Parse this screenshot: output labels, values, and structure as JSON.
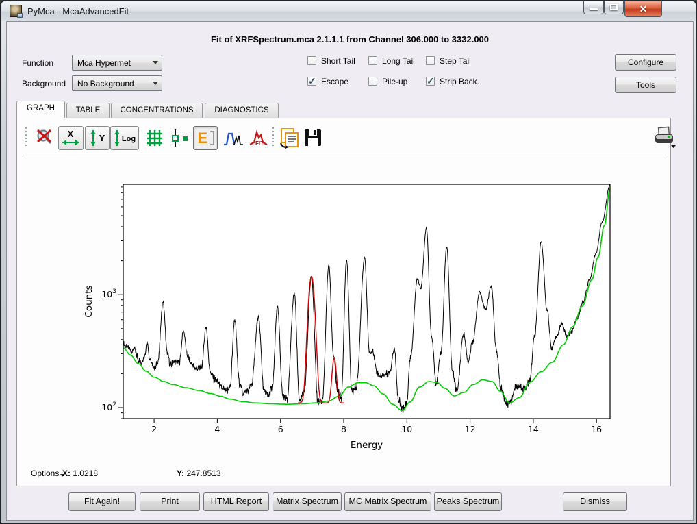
{
  "window": {
    "title": "PyMca - McaAdvancedFit"
  },
  "header": {
    "title": "Fit of XRFSpectrum.mca 2.1.1.1 from Channel 306.000 to 3332.000"
  },
  "controls": {
    "function_label": "Function",
    "function_value": "Mca Hypermet",
    "background_label": "Background",
    "background_value": "No Background",
    "checkboxes": [
      {
        "label": "Short Tail",
        "checked": false
      },
      {
        "label": "Long Tail",
        "checked": false
      },
      {
        "label": "Step Tail",
        "checked": false
      },
      {
        "label": "Escape",
        "checked": true
      },
      {
        "label": "Pile-up",
        "checked": false
      },
      {
        "label": "Strip Back.",
        "checked": true
      }
    ],
    "configure_label": "Configure",
    "tools_label": "Tools"
  },
  "tabs": [
    {
      "label": "GRAPH",
      "active": true
    },
    {
      "label": "TABLE",
      "active": false
    },
    {
      "label": "CONCENTRATIONS",
      "active": false
    },
    {
      "label": "DIAGNOSTICS",
      "active": false
    }
  ],
  "toolbar": {
    "x_label": "X",
    "y_label": "Y",
    "log_label": "Log",
    "e_label": "E",
    "fit_label": "FIT",
    "icons": [
      "zoom-reset",
      "x-autoscale",
      "y-autoscale",
      "log-scale",
      "grid",
      "marker-mode",
      "energy-axis",
      "peaks",
      "fit",
      "copy",
      "save",
      "print"
    ]
  },
  "status": {
    "options_label": "Options",
    "x_label": "X:",
    "x_value": "1.0218",
    "y_label": "Y:",
    "y_value": "247.8513"
  },
  "footer_buttons": [
    "Fit Again!",
    "Print",
    "HTML Report",
    "Matrix Spectrum",
    "MC Matrix Spectrum",
    "Peaks Spectrum",
    "Dismiss"
  ],
  "colors": {
    "data": "#000000",
    "background_fit": "#00cc00",
    "peak_fit": "#cc0000",
    "close_button": "#c33b20",
    "icon_green": "#00a040",
    "icon_orange": "#e8920e"
  },
  "chart_data": {
    "type": "line",
    "xlabel": "Energy",
    "ylabel": "Counts",
    "xlim": [
      1.0218,
      16.43
    ],
    "ylim": [
      80,
      9500
    ],
    "yscale": "log",
    "x_ticks": [
      2,
      4,
      6,
      8,
      10,
      12,
      14,
      16
    ],
    "y_ticks": [
      {
        "value": 100,
        "base": "10",
        "exp": "2"
      },
      {
        "value": 1000,
        "base": "10",
        "exp": "3"
      }
    ],
    "grid": false,
    "legend": "none",
    "series": [
      {
        "name": "measured-spectrum",
        "color": "#000000",
        "noisy": true,
        "points": [
          [
            1.03,
            380
          ],
          [
            1.08,
            355
          ],
          [
            1.15,
            345
          ],
          [
            1.22,
            330
          ],
          [
            1.3,
            318
          ],
          [
            1.38,
            332
          ],
          [
            1.45,
            290
          ],
          [
            1.52,
            262
          ],
          [
            1.6,
            255
          ],
          [
            1.7,
            290
          ],
          [
            1.78,
            385
          ],
          [
            1.86,
            270
          ],
          [
            1.95,
            235
          ],
          [
            2.03,
            228
          ],
          [
            2.12,
            255
          ],
          [
            2.28,
            860
          ],
          [
            2.42,
            300
          ],
          [
            2.52,
            238
          ],
          [
            2.62,
            258
          ],
          [
            2.72,
            248
          ],
          [
            2.8,
            255
          ],
          [
            2.93,
            480
          ],
          [
            3.05,
            290
          ],
          [
            3.15,
            252
          ],
          [
            3.25,
            232
          ],
          [
            3.38,
            222
          ],
          [
            3.5,
            228
          ],
          [
            3.64,
            520
          ],
          [
            3.78,
            205
          ],
          [
            3.9,
            180
          ],
          [
            4.02,
            168
          ],
          [
            4.15,
            148
          ],
          [
            4.28,
            138
          ],
          [
            4.4,
            152
          ],
          [
            4.55,
            600
          ],
          [
            4.7,
            165
          ],
          [
            4.82,
            136
          ],
          [
            4.95,
            140
          ],
          [
            5.08,
            158
          ],
          [
            5.3,
            630
          ],
          [
            5.48,
            140
          ],
          [
            5.6,
            126
          ],
          [
            5.74,
            150
          ],
          [
            5.9,
            780
          ],
          [
            6.08,
            124
          ],
          [
            6.2,
            118
          ],
          [
            6.44,
            1030
          ],
          [
            6.6,
            118
          ],
          [
            6.74,
            132
          ],
          [
            6.98,
            1450
          ],
          [
            7.18,
            116
          ],
          [
            7.32,
            112
          ],
          [
            7.53,
            1820
          ],
          [
            7.68,
            290
          ],
          [
            7.8,
            140
          ],
          [
            7.92,
            120
          ],
          [
            8.09,
            2030
          ],
          [
            8.26,
            140
          ],
          [
            8.4,
            155
          ],
          [
            8.66,
            2110
          ],
          [
            8.82,
            300
          ],
          [
            8.93,
            315
          ],
          [
            9.05,
            205
          ],
          [
            9.18,
            188
          ],
          [
            9.3,
            195
          ],
          [
            9.45,
            205
          ],
          [
            9.6,
            335
          ],
          [
            9.74,
            115
          ],
          [
            9.86,
            94
          ],
          [
            9.98,
            104
          ],
          [
            10.12,
            280
          ],
          [
            10.33,
            1380
          ],
          [
            10.44,
            1150
          ],
          [
            10.62,
            3900
          ],
          [
            10.78,
            430
          ],
          [
            10.93,
            162
          ],
          [
            11.08,
            310
          ],
          [
            11.26,
            2700
          ],
          [
            11.44,
            210
          ],
          [
            11.58,
            140
          ],
          [
            11.8,
            450
          ],
          [
            11.94,
            252
          ],
          [
            12.08,
            380
          ],
          [
            12.3,
            1040
          ],
          [
            12.49,
            735
          ],
          [
            12.67,
            1190
          ],
          [
            12.84,
            310
          ],
          [
            12.98,
            148
          ],
          [
            13.12,
            113
          ],
          [
            13.28,
            110
          ],
          [
            13.42,
            150
          ],
          [
            13.56,
            156
          ],
          [
            13.72,
            150
          ],
          [
            13.88,
            168
          ],
          [
            14.04,
            420
          ],
          [
            14.25,
            2950
          ],
          [
            14.44,
            720
          ],
          [
            14.58,
            330
          ],
          [
            14.74,
            430
          ],
          [
            14.9,
            560
          ],
          [
            15.05,
            430
          ],
          [
            15.2,
            460
          ],
          [
            15.38,
            610
          ],
          [
            15.58,
            870
          ],
          [
            15.78,
            1350
          ],
          [
            15.98,
            2300
          ],
          [
            16.18,
            4400
          ],
          [
            16.43,
            9400
          ]
        ]
      },
      {
        "name": "strip-background",
        "color": "#00cc00",
        "noisy": false,
        "points": [
          [
            1.03,
            336
          ],
          [
            1.25,
            292
          ],
          [
            1.5,
            245
          ],
          [
            1.75,
            210
          ],
          [
            2.0,
            186
          ],
          [
            2.3,
            170
          ],
          [
            2.6,
            160
          ],
          [
            3.0,
            150
          ],
          [
            3.4,
            142
          ],
          [
            3.8,
            133
          ],
          [
            4.1,
            126
          ],
          [
            4.4,
            119
          ],
          [
            4.8,
            113
          ],
          [
            5.2,
            110
          ],
          [
            5.7,
            108
          ],
          [
            6.2,
            107
          ],
          [
            6.7,
            108
          ],
          [
            7.1,
            110
          ],
          [
            7.5,
            114
          ],
          [
            7.85,
            126
          ],
          [
            8.15,
            152
          ],
          [
            8.45,
            166
          ],
          [
            8.7,
            166
          ],
          [
            8.95,
            156
          ],
          [
            9.25,
            132
          ],
          [
            9.55,
            107
          ],
          [
            9.85,
            94
          ],
          [
            10.1,
            112
          ],
          [
            10.4,
            152
          ],
          [
            10.7,
            170
          ],
          [
            10.95,
            167
          ],
          [
            11.2,
            148
          ],
          [
            11.5,
            127
          ],
          [
            11.8,
            136
          ],
          [
            12.1,
            160
          ],
          [
            12.4,
            176
          ],
          [
            12.7,
            170
          ],
          [
            12.95,
            140
          ],
          [
            13.25,
            110
          ],
          [
            13.55,
            122
          ],
          [
            13.9,
            168
          ],
          [
            14.25,
            208
          ],
          [
            14.6,
            252
          ],
          [
            14.95,
            360
          ],
          [
            15.25,
            520
          ],
          [
            15.55,
            790
          ],
          [
            15.85,
            1350
          ],
          [
            16.05,
            2150
          ],
          [
            16.25,
            4100
          ],
          [
            16.43,
            8700
          ]
        ]
      },
      {
        "name": "fitted-peaks",
        "color": "#cc0000",
        "type": "gaussians",
        "baseline": 110,
        "range": [
          6.55,
          8.02
        ],
        "peaks": [
          {
            "center": 6.98,
            "top": 1450,
            "sigma": 0.088
          },
          {
            "center": 7.7,
            "top": 275,
            "sigma": 0.062
          }
        ]
      }
    ]
  }
}
